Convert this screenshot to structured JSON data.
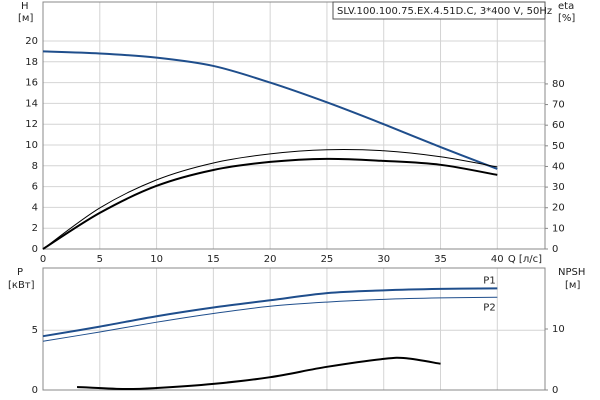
{
  "chart_data": [
    {
      "type": "line",
      "title": "SLV.100.100.75.EX.4.51D.C, 3*400 V, 50Hz",
      "xlabel": "Q [л/с]",
      "ylabel": [
        "H",
        "[м]"
      ],
      "y2label": [
        "eta",
        "[%]"
      ],
      "xlim": [
        0,
        44.2
      ],
      "xticks": [
        0,
        5,
        10,
        15,
        20,
        25,
        30,
        35,
        40
      ],
      "show_xtick_labels": true,
      "ylim": [
        0,
        23.75
      ],
      "yticks": [
        0,
        2,
        4,
        6,
        8,
        10,
        12,
        14,
        16,
        18,
        20
      ],
      "y2lim": [
        0,
        119.7
      ],
      "y2ticks": [
        0,
        10,
        20,
        30,
        40,
        50,
        60,
        70,
        80
      ],
      "grid": true,
      "series": [
        {
          "color": "#1f4e8c",
          "line_width": 2,
          "x": [
            0,
            5,
            10,
            15,
            20,
            25,
            30,
            35,
            40
          ],
          "values": [
            19.0,
            18.8,
            18.4,
            17.6,
            16.0,
            14.1,
            12.0,
            9.8,
            7.7
          ]
        },
        {
          "color": "#000000",
          "line_width": 2,
          "axis": "y2",
          "x": [
            0,
            5,
            10,
            15,
            20,
            25,
            30,
            35,
            40
          ],
          "values": [
            0,
            17.5,
            30.6,
            38.3,
            42.2,
            43.7,
            42.7,
            40.8,
            35.9
          ]
        },
        {
          "color": "#000000",
          "line_width": 1,
          "axis": "y2",
          "x": [
            0,
            5,
            10,
            15,
            20,
            25,
            30,
            35,
            40
          ],
          "values": [
            0,
            19.9,
            33.5,
            41.7,
            46.1,
            48.1,
            47.6,
            44.7,
            39.8
          ]
        }
      ]
    },
    {
      "type": "line",
      "ylabel": [
        "P",
        "[кВт]"
      ],
      "y2label": [
        "NPSH",
        "[м]"
      ],
      "xlim": [
        0,
        44.2
      ],
      "xticks": [
        0,
        5,
        10,
        15,
        20,
        25,
        30,
        35,
        40
      ],
      "show_xtick_labels": false,
      "ylim": [
        0,
        10.2
      ],
      "yticks": [
        0,
        5
      ],
      "y2lim": [
        0,
        20
      ],
      "y2ticks": [
        0,
        10
      ],
      "grid": true,
      "series": [
        {
          "name": "P1",
          "color": "#1f4e8c",
          "line_width": 2,
          "x": [
            0,
            5,
            10,
            15,
            20,
            25,
            30,
            35,
            40
          ],
          "values": [
            4.5,
            5.3,
            6.17,
            6.9,
            7.5,
            8.1,
            8.33,
            8.45,
            8.5
          ]
        },
        {
          "name": "P2",
          "color": "#1f4e8c",
          "line_width": 1,
          "x": [
            0,
            5,
            10,
            15,
            20,
            25,
            30,
            35,
            40
          ],
          "values": [
            4.08,
            4.85,
            5.67,
            6.4,
            7.0,
            7.35,
            7.58,
            7.7,
            7.75
          ]
        },
        {
          "color": "#000000",
          "line_width": 2,
          "axis": "y2",
          "x": [
            3,
            7,
            10,
            15,
            20,
            25,
            30,
            32,
            35
          ],
          "values": [
            0.5,
            0.16,
            0.33,
            1.0,
            2.1,
            3.8,
            5.1,
            5.2,
            4.3
          ]
        }
      ]
    }
  ]
}
